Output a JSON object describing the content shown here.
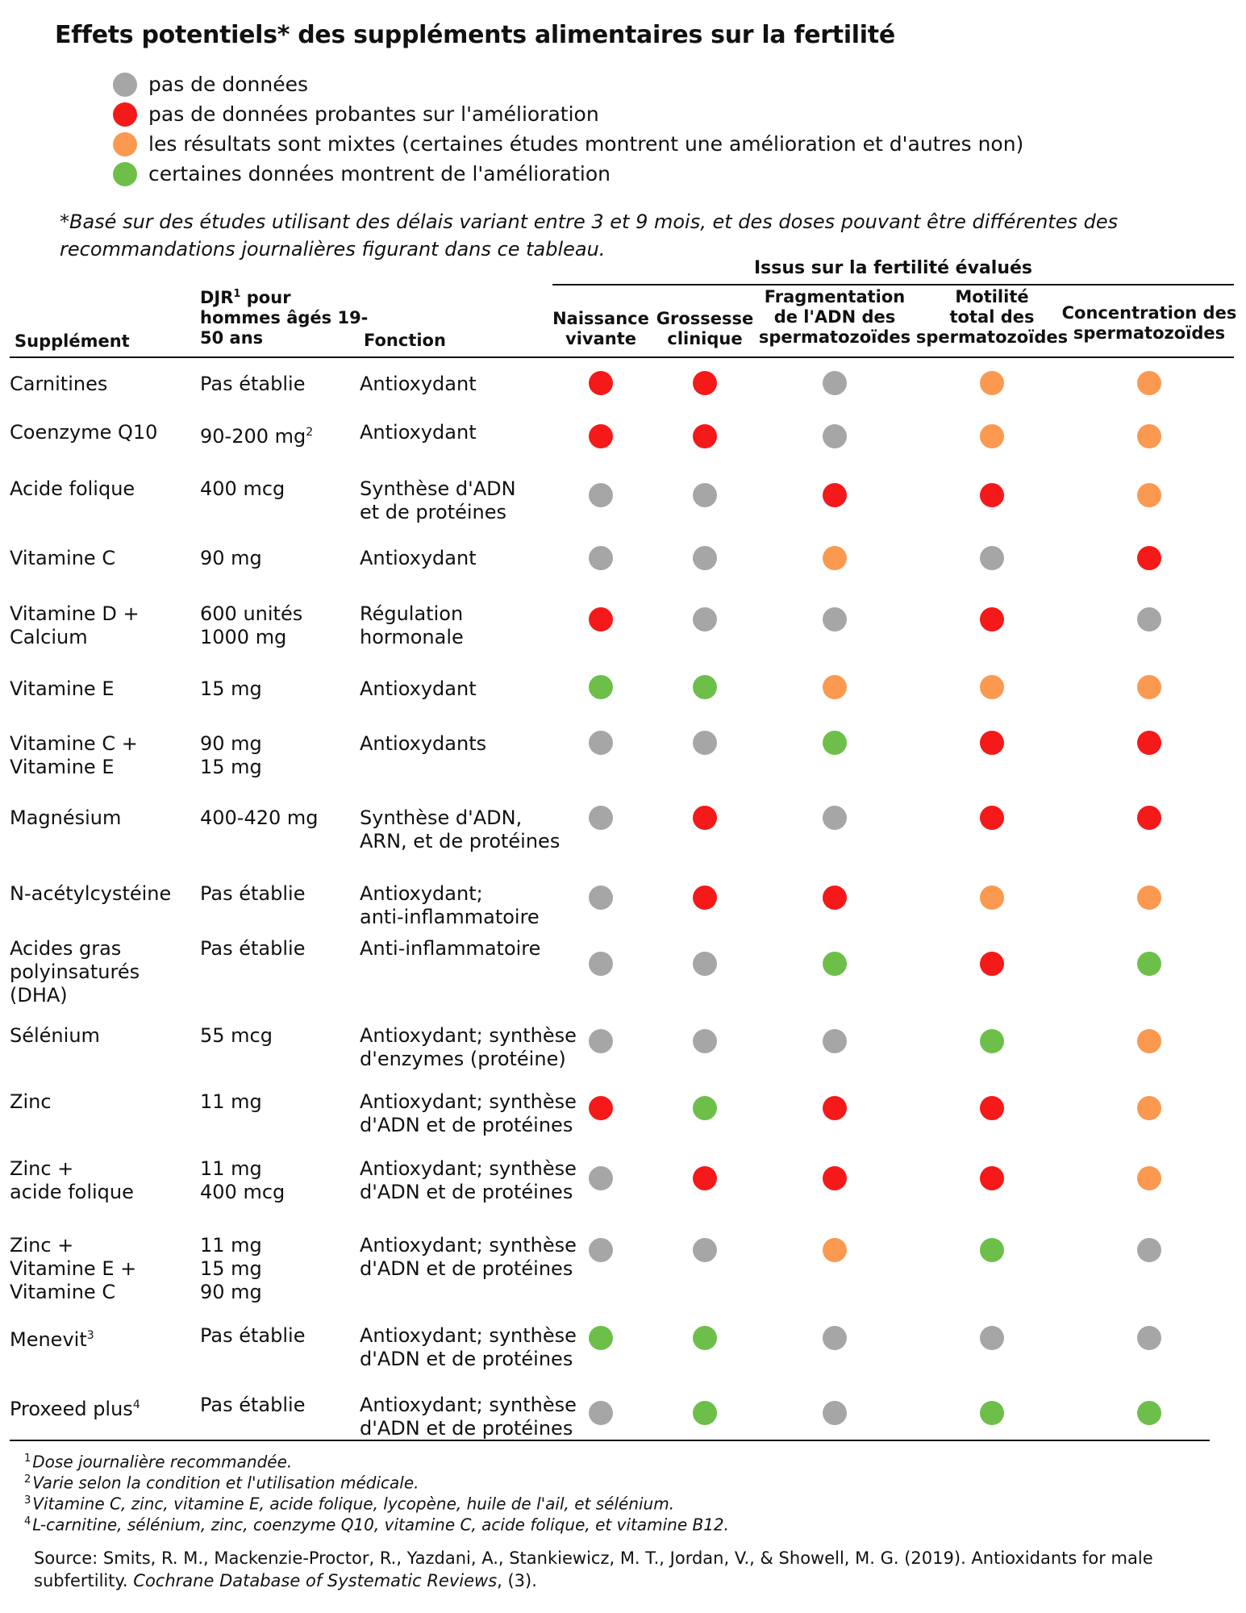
{
  "title": "Effets potentiels* des suppléments alimentaires sur la fertilité",
  "colors": {
    "gray": "#a6a6a6",
    "red": "#f5191a",
    "orange": "#fa994f",
    "green": "#6dbf4a"
  },
  "legend": [
    {
      "color": "gray",
      "label": "pas de données"
    },
    {
      "color": "red",
      "label": "pas de données probantes sur l'amélioration"
    },
    {
      "color": "orange",
      "label": "les résultats sont mixtes (certaines études montrent une amélioration et d'autres non)"
    },
    {
      "color": "green",
      "label": "certaines données montrent de l'amélioration"
    }
  ],
  "note": "*Basé sur des études utilisant des délais variant entre 3 et 9 mois, et des doses pouvant être différentes des recommandations journalières figurant dans ce tableau.",
  "table": {
    "group_header": "Issus sur la fertilité évalués",
    "headers": {
      "supplement": "Supplément",
      "djr": "DJR",
      "djr_sup": "1",
      "djr_rest": " pour\nhommes âgés 19-\n50 ans",
      "function": "Fonction",
      "outcomes": [
        "Naissance\nvivante",
        "Grossesse\nclinique",
        "Fragmentation\nde l'ADN des\nspermatozoïdes",
        "Motilité\ntotal des\nspermatozoïdes",
        "Concentration des\nspermatozoïdes"
      ]
    },
    "rows": [
      {
        "name": "Carnitines",
        "djr": "Pas établie",
        "function": "Antioxydant",
        "outcomes": [
          "red",
          "red",
          "gray",
          "orange",
          "orange"
        ]
      },
      {
        "name": "Coenzyme Q10",
        "djr": "90-200 mg",
        "djr_sup": "2",
        "function": "Antioxydant",
        "outcomes": [
          "red",
          "red",
          "gray",
          "orange",
          "orange"
        ]
      },
      {
        "name": "Acide folique",
        "djr": "400 mcg",
        "function": "Synthèse d'ADN\net de protéines",
        "outcomes": [
          "gray",
          "gray",
          "red",
          "red",
          "orange"
        ]
      },
      {
        "name": "Vitamine C",
        "djr": "90 mg",
        "function": "Antioxydant",
        "outcomes": [
          "gray",
          "gray",
          "orange",
          "gray",
          "red"
        ]
      },
      {
        "name": "Vitamine D +\nCalcium",
        "djr": "600 unités\n1000 mg",
        "function": "Régulation\nhormonale",
        "outcomes": [
          "red",
          "gray",
          "gray",
          "red",
          "gray"
        ]
      },
      {
        "name": "Vitamine E",
        "djr": "15 mg",
        "function": "Antioxydant",
        "outcomes": [
          "green",
          "green",
          "orange",
          "orange",
          "orange"
        ]
      },
      {
        "name": "Vitamine C +\nVitamine E",
        "djr": "90 mg\n15 mg",
        "function": "Antioxydants",
        "outcomes": [
          "gray",
          "gray",
          "green",
          "red",
          "red"
        ]
      },
      {
        "name": "Magnésium",
        "djr": "400-420 mg",
        "function": "Synthèse d'ADN,\nARN, et de protéines",
        "outcomes": [
          "gray",
          "red",
          "gray",
          "red",
          "red"
        ]
      },
      {
        "name": "N-acétylcystéine",
        "djr": "Pas établie",
        "function": "Antioxydant;\nanti-inflammatoire",
        "outcomes": [
          "gray",
          "red",
          "red",
          "orange",
          "orange"
        ]
      },
      {
        "name": "Acides gras\npolyinsaturés\n(DHA)",
        "djr": "Pas établie",
        "function": "Anti-inflammatoire",
        "outcomes": [
          "gray",
          "gray",
          "green",
          "red",
          "green"
        ]
      },
      {
        "name": "Sélénium",
        "djr": "55 mcg",
        "function": "Antioxydant; synthèse\nd'enzymes (protéine)",
        "outcomes": [
          "gray",
          "gray",
          "gray",
          "green",
          "orange"
        ]
      },
      {
        "name": "Zinc",
        "djr": "11 mg",
        "function": "Antioxydant; synthèse\nd'ADN et de protéines",
        "outcomes": [
          "red",
          "green",
          "red",
          "red",
          "orange"
        ]
      },
      {
        "name": "Zinc +\nacide folique",
        "djr": "11 mg\n400 mcg",
        "function": "Antioxydant; synthèse\nd'ADN et de protéines",
        "outcomes": [
          "gray",
          "red",
          "red",
          "red",
          "orange"
        ]
      },
      {
        "name": "Zinc +\nVitamine E +\nVitamine C",
        "djr": "11 mg\n15 mg\n90 mg",
        "function": "Antioxydant; synthèse\nd'ADN et de protéines",
        "outcomes": [
          "gray",
          "gray",
          "orange",
          "green",
          "gray"
        ]
      },
      {
        "name": "Menevit",
        "name_sup": "3",
        "djr": "Pas établie",
        "function": "Antioxydant; synthèse\nd'ADN et de protéines",
        "outcomes": [
          "green",
          "green",
          "gray",
          "gray",
          "gray"
        ]
      },
      {
        "name": "Proxeed plus",
        "name_sup": "4",
        "djr": "Pas établie",
        "function": "Antioxydant; synthèse\nd'ADN et de protéines",
        "outcomes": [
          "gray",
          "green",
          "gray",
          "green",
          "green"
        ]
      }
    ]
  },
  "footnotes": [
    {
      "num": "1",
      "text": "Dose journalière recommandée."
    },
    {
      "num": "2",
      "text": "Varie selon la condition et l'utilisation médicale."
    },
    {
      "num": "3",
      "text": "Vitamine C, zinc, vitamine E, acide folique, lycopène, huile de l'ail, et sélénium."
    },
    {
      "num": "4",
      "text": "L-carnitine, sélénium, zinc, coenzyme Q10, vitamine C, acide folique, et vitamine B12."
    }
  ],
  "source": {
    "prefix": "Source: Smits, R. M., Mackenzie-Proctor, R., Yazdani, A., Stankiewicz, M. T., Jordan, V., & Showell, M. G. (2019). Antioxidants for male subfertility. ",
    "journal": "Cochrane Database of Systematic Reviews",
    "suffix": ", (3)."
  }
}
